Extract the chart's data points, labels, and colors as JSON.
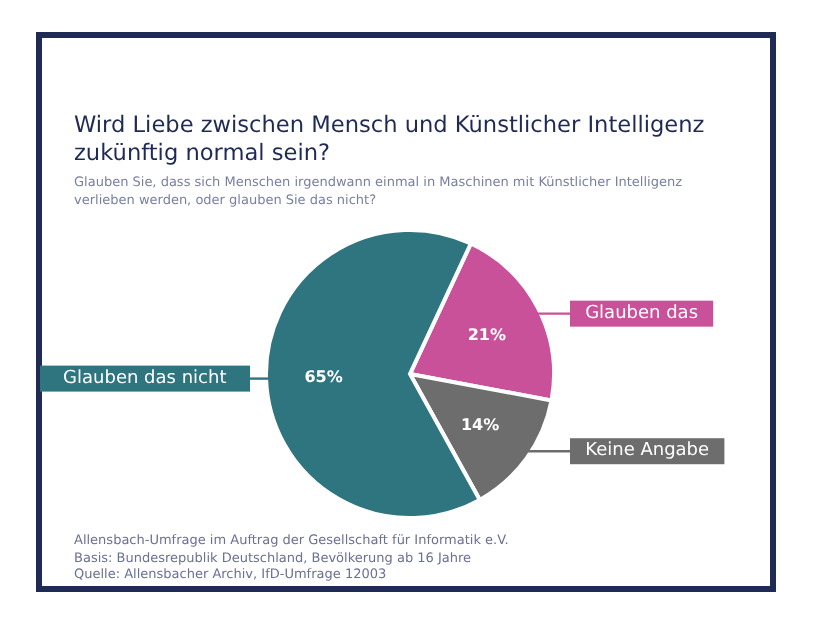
{
  "chart_data": {
    "type": "pie",
    "title": "Wird Liebe zwischen Mensch und Künstlicher Intelligenz zukünftig normal sein?",
    "subtitle": "Glauben Sie, dass sich Menschen irgendwann einmal in Maschinen mit Künstlicher Intelligenz verlieben werden, oder glauben Sie das nicht?",
    "categories": [
      "Glauben das",
      "Keine Angabe",
      "Glauben das nicht"
    ],
    "values": [
      21,
      14,
      65
    ],
    "colors": [
      "#c9519a",
      "#6d6d6d",
      "#2e7580"
    ],
    "value_labels": [
      "21%",
      "14%",
      "65%"
    ],
    "annotations": [
      "Allensbach-Umfrage im Auftrag der Gesellschaft für Informatik e.V.",
      "Basis: Bundesrepublik Deutschland, Bevölkerung ab 16 Jahre",
      "Quelle: Allensbacher Archiv, IfD-Umfrage 12003"
    ]
  }
}
